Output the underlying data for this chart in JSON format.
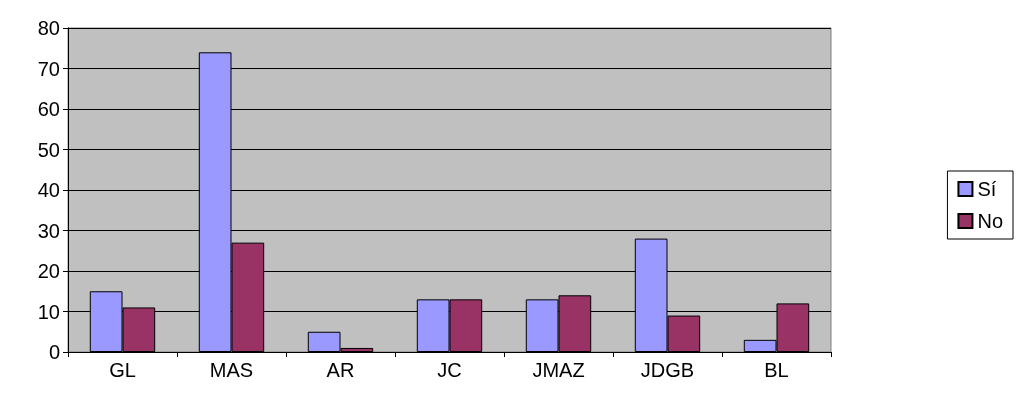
{
  "chart_data": {
    "type": "bar",
    "categories": [
      "GL",
      "MAS",
      "AR",
      "JC",
      "JMAZ",
      "JDGB",
      "BL"
    ],
    "series": [
      {
        "name": "Sí",
        "color": "#9999ff",
        "values": [
          15,
          74,
          5,
          13,
          13,
          28,
          3
        ]
      },
      {
        "name": "No",
        "color": "#993366",
        "values": [
          11,
          27,
          1,
          13,
          14,
          9,
          12
        ]
      }
    ],
    "ylim": [
      0,
      80
    ],
    "yticks": [
      0,
      10,
      20,
      30,
      40,
      50,
      60,
      70,
      80
    ],
    "grid": "y",
    "legend": "right"
  }
}
